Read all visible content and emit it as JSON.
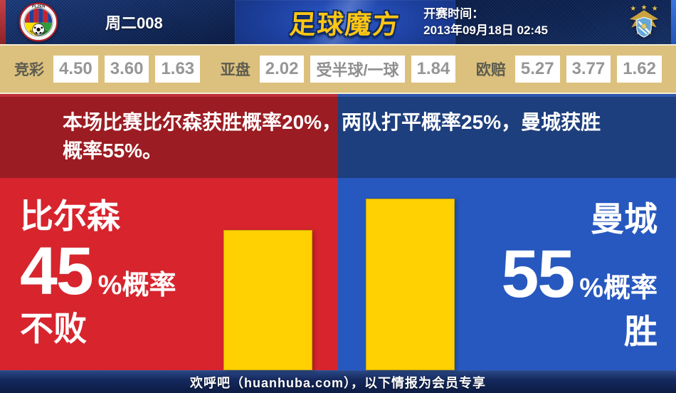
{
  "header": {
    "match_code": "周二008",
    "site_logo": "足球魔方",
    "kickoff_label": "开赛时间：",
    "kickoff_time": "2013年09月18日 02:45",
    "home_crest": {
      "name": "fc-viktoria-plzen-crest",
      "text_top": "PLZEN",
      "text_ring": "FC VIKTORIA"
    },
    "away_crest": {
      "name": "manchester-city-crest"
    }
  },
  "odds_bar": {
    "groups": [
      {
        "label": "竞彩",
        "values": [
          "4.50",
          "3.60",
          "1.63"
        ]
      },
      {
        "label": "亚盘",
        "values": [
          "2.02",
          "受半球/一球",
          "1.84"
        ]
      },
      {
        "label": "欧赔",
        "values": [
          "5.27",
          "3.77",
          "1.62"
        ]
      }
    ]
  },
  "summary": {
    "text": "本场比赛比尔森获胜概率20%，两队打平概率25%，曼城获胜概率55%。"
  },
  "left_panel": {
    "team": "比尔森",
    "value": "45",
    "unit": "%概率",
    "outcome": "不败"
  },
  "right_panel": {
    "team": "曼城",
    "value": "55",
    "unit": "%概率",
    "outcome": "胜"
  },
  "footer": {
    "text": "欢呼吧（huanhuba.com），以下情报为会员专享"
  },
  "chart_data": {
    "type": "bar",
    "categories": [
      "比尔森 不败",
      "曼城 胜"
    ],
    "values": [
      45,
      55
    ],
    "value_unit": "%概率",
    "bar_color": "#ffd103",
    "title": "本场比赛比尔森获胜概率20%，两队打平概率25%，曼城获胜概率55%。",
    "annotations": {
      "home_win_pct": 20,
      "draw_pct": 25,
      "away_win_pct": 55
    },
    "legend_position": "none",
    "grid": false
  },
  "colors": {
    "red-dark": "#9b1c22",
    "red-bright": "#d7242d",
    "blue-dark": "#1e3f7d",
    "blue-bright": "#2758bf",
    "bar-yellow": "#ffd103",
    "odds-tan": "#dcc07d"
  }
}
